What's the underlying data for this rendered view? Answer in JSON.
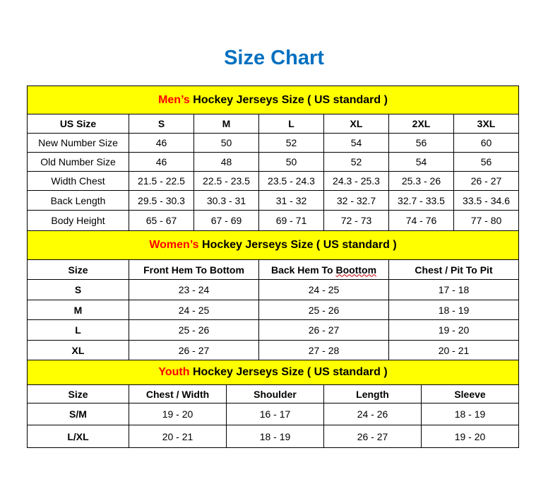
{
  "title": "Size Chart",
  "colors": {
    "title": "#0070C0",
    "section_bg": "#FFFF00",
    "highlight": "#FF0000"
  },
  "sections": [
    {
      "key": "men",
      "highlight": "Men’s",
      "heading": " Hockey Jerseys Size ( US standard )",
      "col_widths": [
        144,
        92,
        92,
        92,
        92,
        92,
        92
      ],
      "header_height": 40,
      "columns": [
        "US Size",
        "S",
        "M",
        "L",
        "XL",
        "2XL",
        "3XL"
      ],
      "col_height": 27,
      "bold_first_col": false,
      "row_heights": [
        27,
        27,
        27,
        28,
        29
      ],
      "rows": [
        [
          "New Number Size",
          "46",
          "50",
          "52",
          "54",
          "56",
          "60"
        ],
        [
          "Old Number Size",
          "46",
          "48",
          "50",
          "52",
          "54",
          "56"
        ],
        [
          "Width Chest",
          "21.5 - 22.5",
          "22.5 - 23.5",
          "23.5 - 24.3",
          "24.3 - 25.3",
          "25.3 - 26",
          "26 - 27"
        ],
        [
          "Back Length",
          "29.5 - 30.3",
          "30.3 - 31",
          "31 - 32",
          "32 - 32.7",
          "32.7 - 33.5",
          "33.5 - 34.6"
        ],
        [
          "Body Height",
          "65 - 67",
          "67 - 69",
          "69 - 71",
          "72 - 73",
          "74 - 76",
          "77 - 80"
        ]
      ]
    },
    {
      "key": "women",
      "highlight": "Women’s",
      "heading": " Hockey Jerseys Size ( US standard )",
      "col_widths": [
        144,
        184,
        184,
        184
      ],
      "header_height": 41,
      "columns": [
        "Size",
        "Front Hem To Bottom",
        "Back Hem To Boottom",
        "Chest / Pit To Pit"
      ],
      "col_height": 28,
      "bold_first_col": true,
      "row_heights": [
        29,
        28,
        29,
        28
      ],
      "rows": [
        [
          "S",
          "23 - 24",
          "24 - 25",
          "17 - 18"
        ],
        [
          "M",
          "24 - 25",
          "25 - 26",
          "18 - 19"
        ],
        [
          "L",
          "25 - 26",
          "26 - 27",
          "19 - 20"
        ],
        [
          "XL",
          "26 - 27",
          "27 - 28",
          "20 - 21"
        ]
      ]
    },
    {
      "key": "youth",
      "highlight": "Youth",
      "heading": " Hockey Jerseys Size ( US standard )",
      "col_widths": [
        144,
        138,
        138,
        138,
        138
      ],
      "header_height": 35,
      "columns": [
        "Size",
        "Chest / Width",
        "Shoulder",
        "Length",
        "Sleeve"
      ],
      "col_height": 26,
      "bold_first_col": true,
      "row_heights": [
        31,
        32
      ],
      "rows": [
        [
          "S/M",
          "19 - 20",
          "16 - 17",
          "24 - 26",
          "18 - 19"
        ],
        [
          "L/XL",
          "20 - 21",
          "18 - 19",
          "26 - 27",
          "19 - 20"
        ]
      ]
    }
  ]
}
